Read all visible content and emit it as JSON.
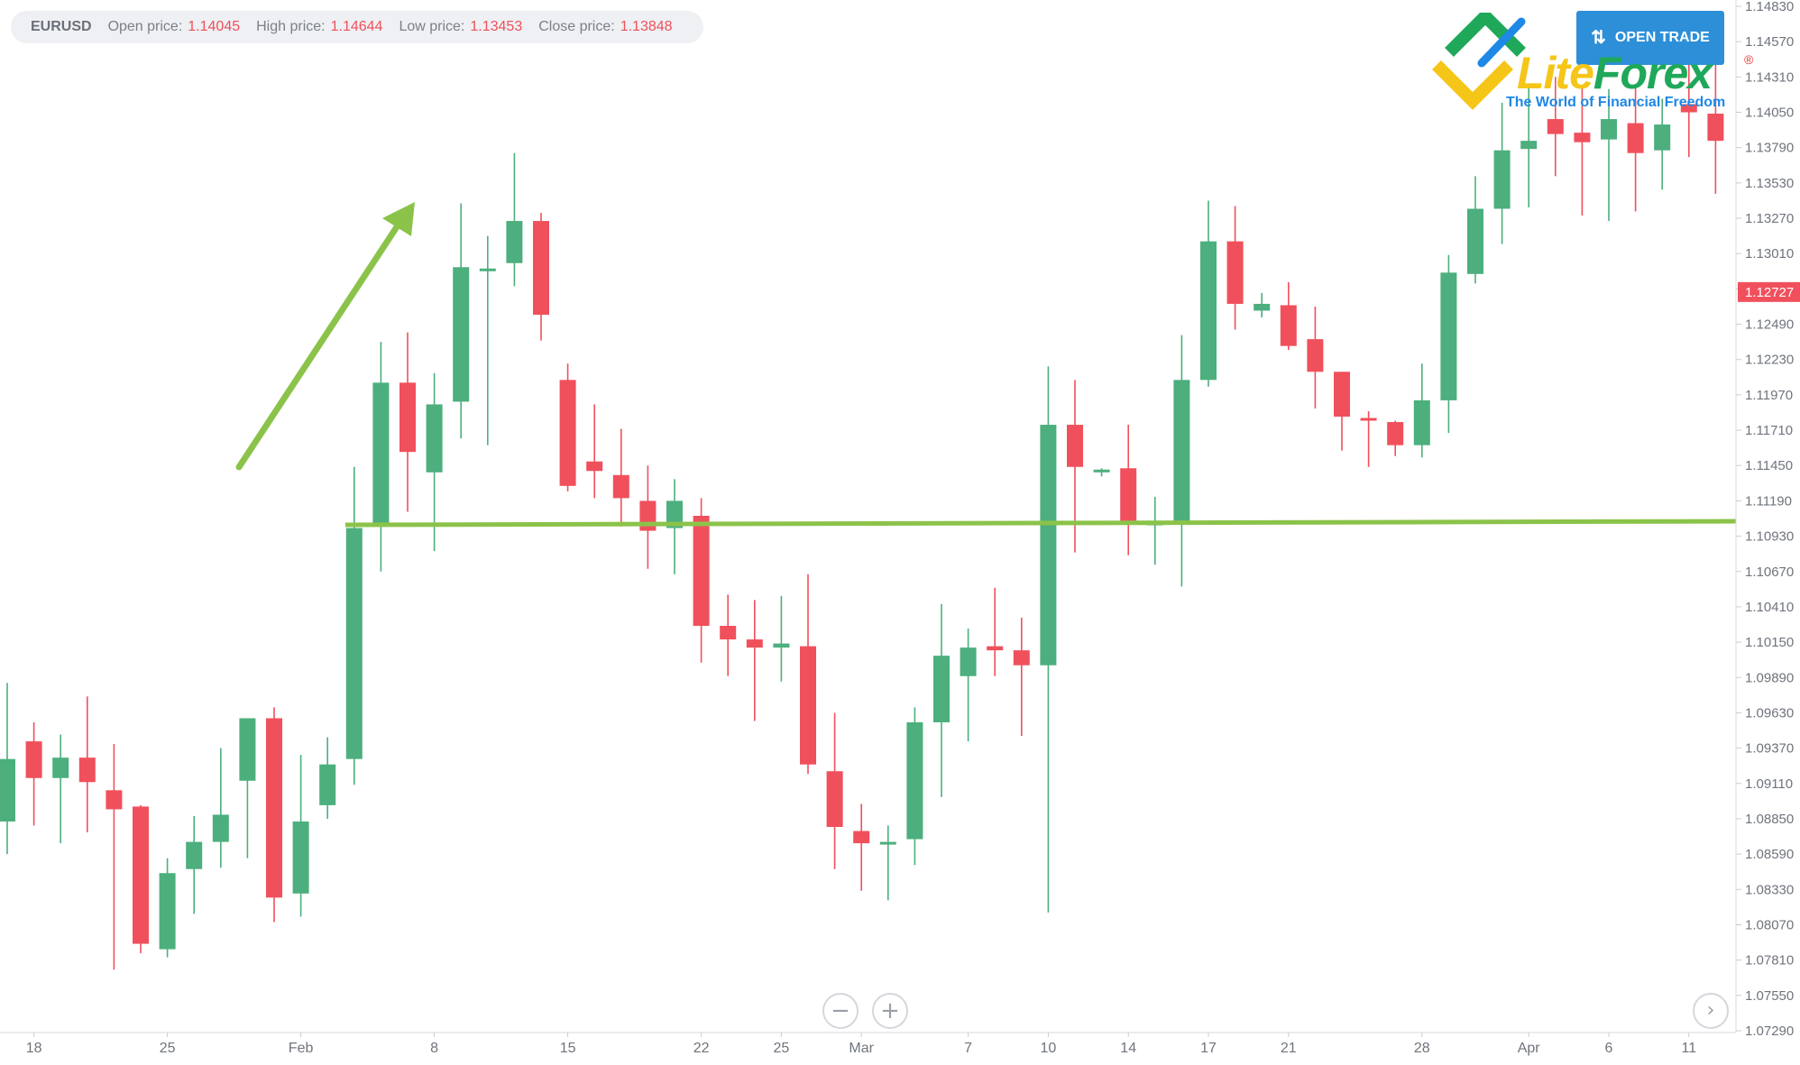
{
  "header": {
    "symbol": "EURUSD",
    "open_label": "Open price:",
    "open_value": "1.14045",
    "high_label": "High price:",
    "high_value": "1.14644",
    "low_label": "Low price:",
    "low_value": "1.13453",
    "close_label": "Close price:",
    "close_value": "1.13848"
  },
  "open_trade": {
    "label": "OPEN TRADE",
    "icon": "up-down-arrows-icon"
  },
  "logo": {
    "name_part1": "Lite",
    "name_part2": "Forex",
    "registered": "®",
    "tagline": "The World of Financial Freedom"
  },
  "controls": {
    "zoom_out_icon": "minus-icon",
    "zoom_in_icon": "plus-icon",
    "scroll_right_icon": "chevron-right-icon"
  },
  "colors": {
    "up": "#4caf7d",
    "down": "#f0505c",
    "annotation": "#8bc34a",
    "price_badge": "#f0505c"
  },
  "chart_data": {
    "type": "candlestick",
    "symbol": "EURUSD",
    "ylim": [
      1.0729,
      1.1483
    ],
    "y_ticks": [
      "1.14830",
      "1.14570",
      "1.14310",
      "1.14050",
      "1.13790",
      "1.13530",
      "1.13270",
      "1.13010",
      "1.12750",
      "1.12490",
      "1.12230",
      "1.11970",
      "1.11710",
      "1.11450",
      "1.11190",
      "1.10930",
      "1.10670",
      "1.10410",
      "1.10150",
      "1.09890",
      "1.09630",
      "1.09370",
      "1.09110",
      "1.08850",
      "1.08590",
      "1.08330",
      "1.08070",
      "1.07810",
      "1.07550",
      "1.07290"
    ],
    "current_price": "1.12727",
    "support_level": 1.1102,
    "x_ticks": [
      {
        "label": "18",
        "index": 1
      },
      {
        "label": "25",
        "index": 6
      },
      {
        "label": "Feb",
        "index": 11
      },
      {
        "label": "8",
        "index": 16
      },
      {
        "label": "15",
        "index": 21
      },
      {
        "label": "22",
        "index": 26
      },
      {
        "label": "25",
        "index": 29
      },
      {
        "label": "Mar",
        "index": 32
      },
      {
        "label": "7",
        "index": 36
      },
      {
        "label": "10",
        "index": 39
      },
      {
        "label": "14",
        "index": 42
      },
      {
        "label": "17",
        "index": 45
      },
      {
        "label": "21",
        "index": 48
      },
      {
        "label": "28",
        "index": 53
      },
      {
        "label": "Apr",
        "index": 57
      },
      {
        "label": "6",
        "index": 60
      },
      {
        "label": "11",
        "index": 63
      }
    ],
    "candles": [
      {
        "o": 1.0883,
        "h": 1.0985,
        "l": 1.0859,
        "c": 1.0929
      },
      {
        "o": 1.0942,
        "h": 1.0956,
        "l": 1.088,
        "c": 1.0915
      },
      {
        "o": 1.0915,
        "h": 1.0947,
        "l": 1.0867,
        "c": 1.093
      },
      {
        "o": 1.093,
        "h": 1.0975,
        "l": 1.0875,
        "c": 1.0912
      },
      {
        "o": 1.0906,
        "h": 1.094,
        "l": 1.0774,
        "c": 1.0892
      },
      {
        "o": 1.0894,
        "h": 1.0895,
        "l": 1.0786,
        "c": 1.0793
      },
      {
        "o": 1.0789,
        "h": 1.0856,
        "l": 1.0783,
        "c": 1.0845
      },
      {
        "o": 1.0848,
        "h": 1.0887,
        "l": 1.0815,
        "c": 1.0868
      },
      {
        "o": 1.0868,
        "h": 1.0937,
        "l": 1.0849,
        "c": 1.0888
      },
      {
        "o": 1.0913,
        "h": 1.0959,
        "l": 1.0856,
        "c": 1.0959
      },
      {
        "o": 1.0959,
        "h": 1.0967,
        "l": 1.0809,
        "c": 1.0827
      },
      {
        "o": 1.083,
        "h": 1.0932,
        "l": 1.0813,
        "c": 1.0883
      },
      {
        "o": 1.0895,
        "h": 1.0945,
        "l": 1.0885,
        "c": 1.0925
      },
      {
        "o": 1.0929,
        "h": 1.1144,
        "l": 1.091,
        "c": 1.1099
      },
      {
        "o": 1.1103,
        "h": 1.1236,
        "l": 1.1067,
        "c": 1.1206
      },
      {
        "o": 1.1206,
        "h": 1.1243,
        "l": 1.1111,
        "c": 1.1155
      },
      {
        "o": 1.114,
        "h": 1.1213,
        "l": 1.1082,
        "c": 1.119
      },
      {
        "o": 1.1192,
        "h": 1.1338,
        "l": 1.1165,
        "c": 1.1291
      },
      {
        "o": 1.129,
        "h": 1.1314,
        "l": 1.116,
        "c": 1.129
      },
      {
        "o": 1.1294,
        "h": 1.1375,
        "l": 1.1277,
        "c": 1.1325
      },
      {
        "o": 1.1325,
        "h": 1.1331,
        "l": 1.1237,
        "c": 1.1256
      },
      {
        "o": 1.1208,
        "h": 1.122,
        "l": 1.1126,
        "c": 1.113
      },
      {
        "o": 1.1148,
        "h": 1.119,
        "l": 1.1121,
        "c": 1.1141
      },
      {
        "o": 1.1138,
        "h": 1.1172,
        "l": 1.11,
        "c": 1.1121
      },
      {
        "o": 1.1119,
        "h": 1.1145,
        "l": 1.1069,
        "c": 1.1097
      },
      {
        "o": 1.1099,
        "h": 1.1135,
        "l": 1.1065,
        "c": 1.1119
      },
      {
        "o": 1.1108,
        "h": 1.1121,
        "l": 1.1,
        "c": 1.1027
      },
      {
        "o": 1.1027,
        "h": 1.105,
        "l": 1.099,
        "c": 1.1017
      },
      {
        "o": 1.1017,
        "h": 1.1046,
        "l": 1.0957,
        "c": 1.1011
      },
      {
        "o": 1.1011,
        "h": 1.1049,
        "l": 1.0986,
        "c": 1.1014
      },
      {
        "o": 1.1012,
        "h": 1.1065,
        "l": 1.0918,
        "c": 1.0925
      },
      {
        "o": 1.092,
        "h": 1.0963,
        "l": 1.0848,
        "c": 1.0879
      },
      {
        "o": 1.0876,
        "h": 1.0896,
        "l": 1.0832,
        "c": 1.0867
      },
      {
        "o": 1.0867,
        "h": 1.088,
        "l": 1.0825,
        "c": 1.0868
      },
      {
        "o": 1.087,
        "h": 1.0967,
        "l": 1.0851,
        "c": 1.0956
      },
      {
        "o": 1.0956,
        "h": 1.1043,
        "l": 1.0901,
        "c": 1.1005
      },
      {
        "o": 1.099,
        "h": 1.1025,
        "l": 1.0942,
        "c": 1.1011
      },
      {
        "o": 1.1012,
        "h": 1.1055,
        "l": 1.099,
        "c": 1.1009
      },
      {
        "o": 1.1009,
        "h": 1.1033,
        "l": 1.0946,
        "c": 1.0998
      },
      {
        "o": 1.0998,
        "h": 1.1218,
        "l": 1.0816,
        "c": 1.1175
      },
      {
        "o": 1.1175,
        "h": 1.1208,
        "l": 1.1081,
        "c": 1.1144
      },
      {
        "o": 1.114,
        "h": 1.1143,
        "l": 1.1137,
        "c": 1.1142
      },
      {
        "o": 1.1143,
        "h": 1.1175,
        "l": 1.1079,
        "c": 1.1103
      },
      {
        "o": 1.1101,
        "h": 1.1122,
        "l": 1.1072,
        "c": 1.1103
      },
      {
        "o": 1.1103,
        "h": 1.1241,
        "l": 1.1056,
        "c": 1.1208
      },
      {
        "o": 1.1208,
        "h": 1.134,
        "l": 1.1203,
        "c": 1.131
      },
      {
        "o": 1.131,
        "h": 1.1336,
        "l": 1.1245,
        "c": 1.1264
      },
      {
        "o": 1.1259,
        "h": 1.1272,
        "l": 1.1254,
        "c": 1.1264
      },
      {
        "o": 1.1263,
        "h": 1.128,
        "l": 1.123,
        "c": 1.1233
      },
      {
        "o": 1.1238,
        "h": 1.1262,
        "l": 1.1187,
        "c": 1.1214
      },
      {
        "o": 1.1214,
        "h": 1.1214,
        "l": 1.1156,
        "c": 1.1181
      },
      {
        "o": 1.118,
        "h": 1.1185,
        "l": 1.1144,
        "c": 1.1179
      },
      {
        "o": 1.1177,
        "h": 1.1178,
        "l": 1.1152,
        "c": 1.116
      },
      {
        "o": 1.116,
        "h": 1.122,
        "l": 1.1151,
        "c": 1.1193
      },
      {
        "o": 1.1193,
        "h": 1.13,
        "l": 1.1169,
        "c": 1.1287
      },
      {
        "o": 1.1286,
        "h": 1.1358,
        "l": 1.1279,
        "c": 1.1334
      },
      {
        "o": 1.1334,
        "h": 1.1412,
        "l": 1.1308,
        "c": 1.1377
      },
      {
        "o": 1.1378,
        "h": 1.1426,
        "l": 1.1335,
        "c": 1.1384
      },
      {
        "o": 1.14,
        "h": 1.1431,
        "l": 1.1358,
        "c": 1.1389
      },
      {
        "o": 1.139,
        "h": 1.1423,
        "l": 1.1329,
        "c": 1.1383
      },
      {
        "o": 1.1385,
        "h": 1.1422,
        "l": 1.1325,
        "c": 1.14
      },
      {
        "o": 1.1397,
        "h": 1.1423,
        "l": 1.1332,
        "c": 1.1375
      },
      {
        "o": 1.1377,
        "h": 1.1415,
        "l": 1.1348,
        "c": 1.1396
      },
      {
        "o": 1.1411,
        "h": 1.144,
        "l": 1.1372,
        "c": 1.1405
      },
      {
        "o": 1.1404,
        "h": 1.1464,
        "l": 1.1345,
        "c": 1.1384
      }
    ]
  }
}
